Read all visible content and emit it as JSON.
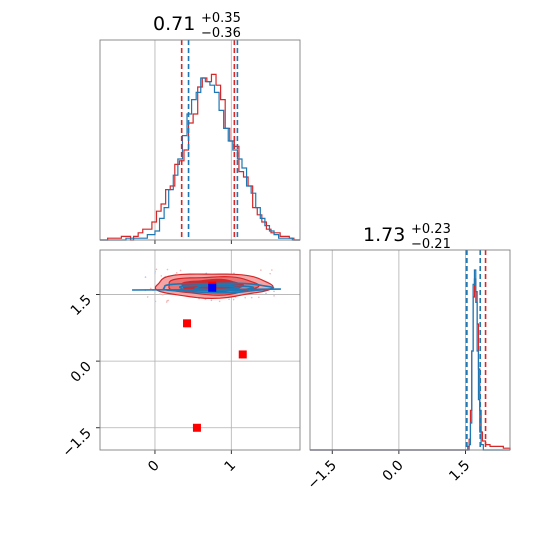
{
  "chart_data": {
    "type": "corner",
    "parameters": [
      {
        "title_value": "0.71",
        "title_plus": "+0.35",
        "title_minus": "−0.36",
        "median": 0.71,
        "range": [
          -0.72,
          1.9
        ]
      },
      {
        "title_value": "1.73",
        "title_plus": "+0.23",
        "title_minus": "−0.21",
        "median": 1.73,
        "range": [
          -2.0,
          2.5
        ]
      }
    ],
    "x0_ticks": [
      {
        "value": 0,
        "label": "0"
      },
      {
        "value": 1,
        "label": "1"
      }
    ],
    "x1_ticks": [
      {
        "value": -1.5,
        "label": "−1.5"
      },
      {
        "value": 0.0,
        "label": "0.0"
      },
      {
        "value": 1.5,
        "label": "1.5"
      }
    ],
    "y1_ticks": [
      {
        "value": 1.5,
        "label": "1.5"
      },
      {
        "value": 0.0,
        "label": "0.0"
      },
      {
        "value": -1.5,
        "label": "−1.5"
      }
    ],
    "grid": true,
    "series": [
      {
        "color": "#d62728",
        "quantiles_p0": [
          0.35,
          1.04
        ],
        "quantiles_p1": [
          1.53,
          1.95
        ],
        "contour_center": [
          0.75,
          1.7
        ],
        "contour_sigma": [
          0.38,
          0.13
        ],
        "hist_p0_steps": [
          [
            -0.72,
            0.0
          ],
          [
            -0.66,
            0.0
          ],
          [
            -0.62,
            0.01
          ],
          [
            -0.56,
            0.01
          ],
          [
            -0.5,
            0.01
          ],
          [
            -0.44,
            0.02
          ],
          [
            -0.38,
            0.02
          ],
          [
            -0.32,
            0.0
          ],
          [
            -0.28,
            0.02
          ],
          [
            -0.22,
            0.04
          ],
          [
            -0.16,
            0.06
          ],
          [
            -0.1,
            0.06
          ],
          [
            -0.04,
            0.1
          ],
          [
            0.02,
            0.16
          ],
          [
            0.08,
            0.2
          ],
          [
            0.14,
            0.28
          ],
          [
            0.2,
            0.3
          ],
          [
            0.26,
            0.42
          ],
          [
            0.32,
            0.44
          ],
          [
            0.38,
            0.5
          ],
          [
            0.44,
            0.65
          ],
          [
            0.5,
            0.7
          ],
          [
            0.56,
            0.85
          ],
          [
            0.62,
            0.9
          ],
          [
            0.68,
            0.88
          ],
          [
            0.74,
            0.92
          ],
          [
            0.8,
            0.86
          ],
          [
            0.86,
            0.78
          ],
          [
            0.92,
            0.62
          ],
          [
            0.98,
            0.55
          ],
          [
            1.04,
            0.52
          ],
          [
            1.1,
            0.38
          ],
          [
            1.16,
            0.35
          ],
          [
            1.22,
            0.3
          ],
          [
            1.28,
            0.18
          ],
          [
            1.34,
            0.14
          ],
          [
            1.4,
            0.1
          ],
          [
            1.46,
            0.06
          ],
          [
            1.52,
            0.04
          ],
          [
            1.58,
            0.04
          ],
          [
            1.64,
            0.02
          ],
          [
            1.7,
            0.02
          ],
          [
            1.76,
            0.01
          ],
          [
            1.82,
            0.0
          ],
          [
            1.9,
            0.0
          ]
        ],
        "hist_p1_steps": [
          [
            -2.0,
            0.0
          ],
          [
            1.55,
            0.02
          ],
          [
            1.58,
            0.06
          ],
          [
            1.61,
            0.22
          ],
          [
            1.64,
            0.55
          ],
          [
            1.67,
            0.85
          ],
          [
            1.7,
            0.95
          ],
          [
            1.73,
            0.88
          ],
          [
            1.76,
            0.7
          ],
          [
            1.79,
            0.45
          ],
          [
            1.82,
            0.22
          ],
          [
            1.85,
            0.1
          ],
          [
            1.88,
            0.05
          ],
          [
            1.95,
            0.03
          ],
          [
            2.05,
            0.02
          ],
          [
            2.15,
            0.02
          ],
          [
            2.25,
            0.02
          ],
          [
            2.35,
            0.01
          ],
          [
            2.5,
            0.0
          ]
        ],
        "markers": [
          {
            "x": 0.75,
            "y": 1.7
          },
          {
            "x": 0.42,
            "y": 0.85
          },
          {
            "x": 1.15,
            "y": 0.15
          },
          {
            "x": 0.55,
            "y": -1.5
          }
        ]
      },
      {
        "color": "#1f77b4",
        "quantiles_p0": [
          0.44,
          1.08
        ],
        "quantiles_p1": [
          1.52,
          1.83
        ],
        "contour_center": [
          0.8,
          1.65
        ],
        "contour_sigma": [
          0.34,
          0.07
        ],
        "hist_p0_steps": [
          [
            -0.72,
            0.0
          ],
          [
            -0.44,
            0.0
          ],
          [
            -0.38,
            0.01
          ],
          [
            -0.2,
            0.01
          ],
          [
            -0.1,
            0.03
          ],
          [
            0.0,
            0.05
          ],
          [
            0.06,
            0.12
          ],
          [
            0.12,
            0.18
          ],
          [
            0.18,
            0.28
          ],
          [
            0.24,
            0.36
          ],
          [
            0.3,
            0.45
          ],
          [
            0.36,
            0.58
          ],
          [
            0.42,
            0.7
          ],
          [
            0.48,
            0.78
          ],
          [
            0.54,
            0.82
          ],
          [
            0.6,
            0.9
          ],
          [
            0.66,
            0.88
          ],
          [
            0.72,
            0.86
          ],
          [
            0.78,
            0.82
          ],
          [
            0.84,
            0.72
          ],
          [
            0.9,
            0.62
          ],
          [
            0.96,
            0.55
          ],
          [
            1.02,
            0.5
          ],
          [
            1.08,
            0.45
          ],
          [
            1.14,
            0.4
          ],
          [
            1.2,
            0.3
          ],
          [
            1.26,
            0.26
          ],
          [
            1.32,
            0.18
          ],
          [
            1.38,
            0.12
          ],
          [
            1.44,
            0.08
          ],
          [
            1.5,
            0.05
          ],
          [
            1.56,
            0.03
          ],
          [
            1.62,
            0.01
          ],
          [
            1.8,
            0.0
          ],
          [
            1.9,
            0.0
          ]
        ],
        "hist_p1_steps": [
          [
            -2.0,
            0.0
          ],
          [
            1.58,
            0.03
          ],
          [
            1.61,
            0.15
          ],
          [
            1.64,
            0.55
          ],
          [
            1.67,
            0.92
          ],
          [
            1.7,
            1.0
          ],
          [
            1.73,
            0.82
          ],
          [
            1.76,
            0.55
          ],
          [
            1.79,
            0.28
          ],
          [
            1.82,
            0.1
          ],
          [
            1.85,
            0.03
          ],
          [
            1.9,
            0.0
          ],
          [
            2.5,
            0.0
          ]
        ],
        "markers": [
          {
            "x": 0.75,
            "y": 1.65
          }
        ]
      }
    ]
  }
}
